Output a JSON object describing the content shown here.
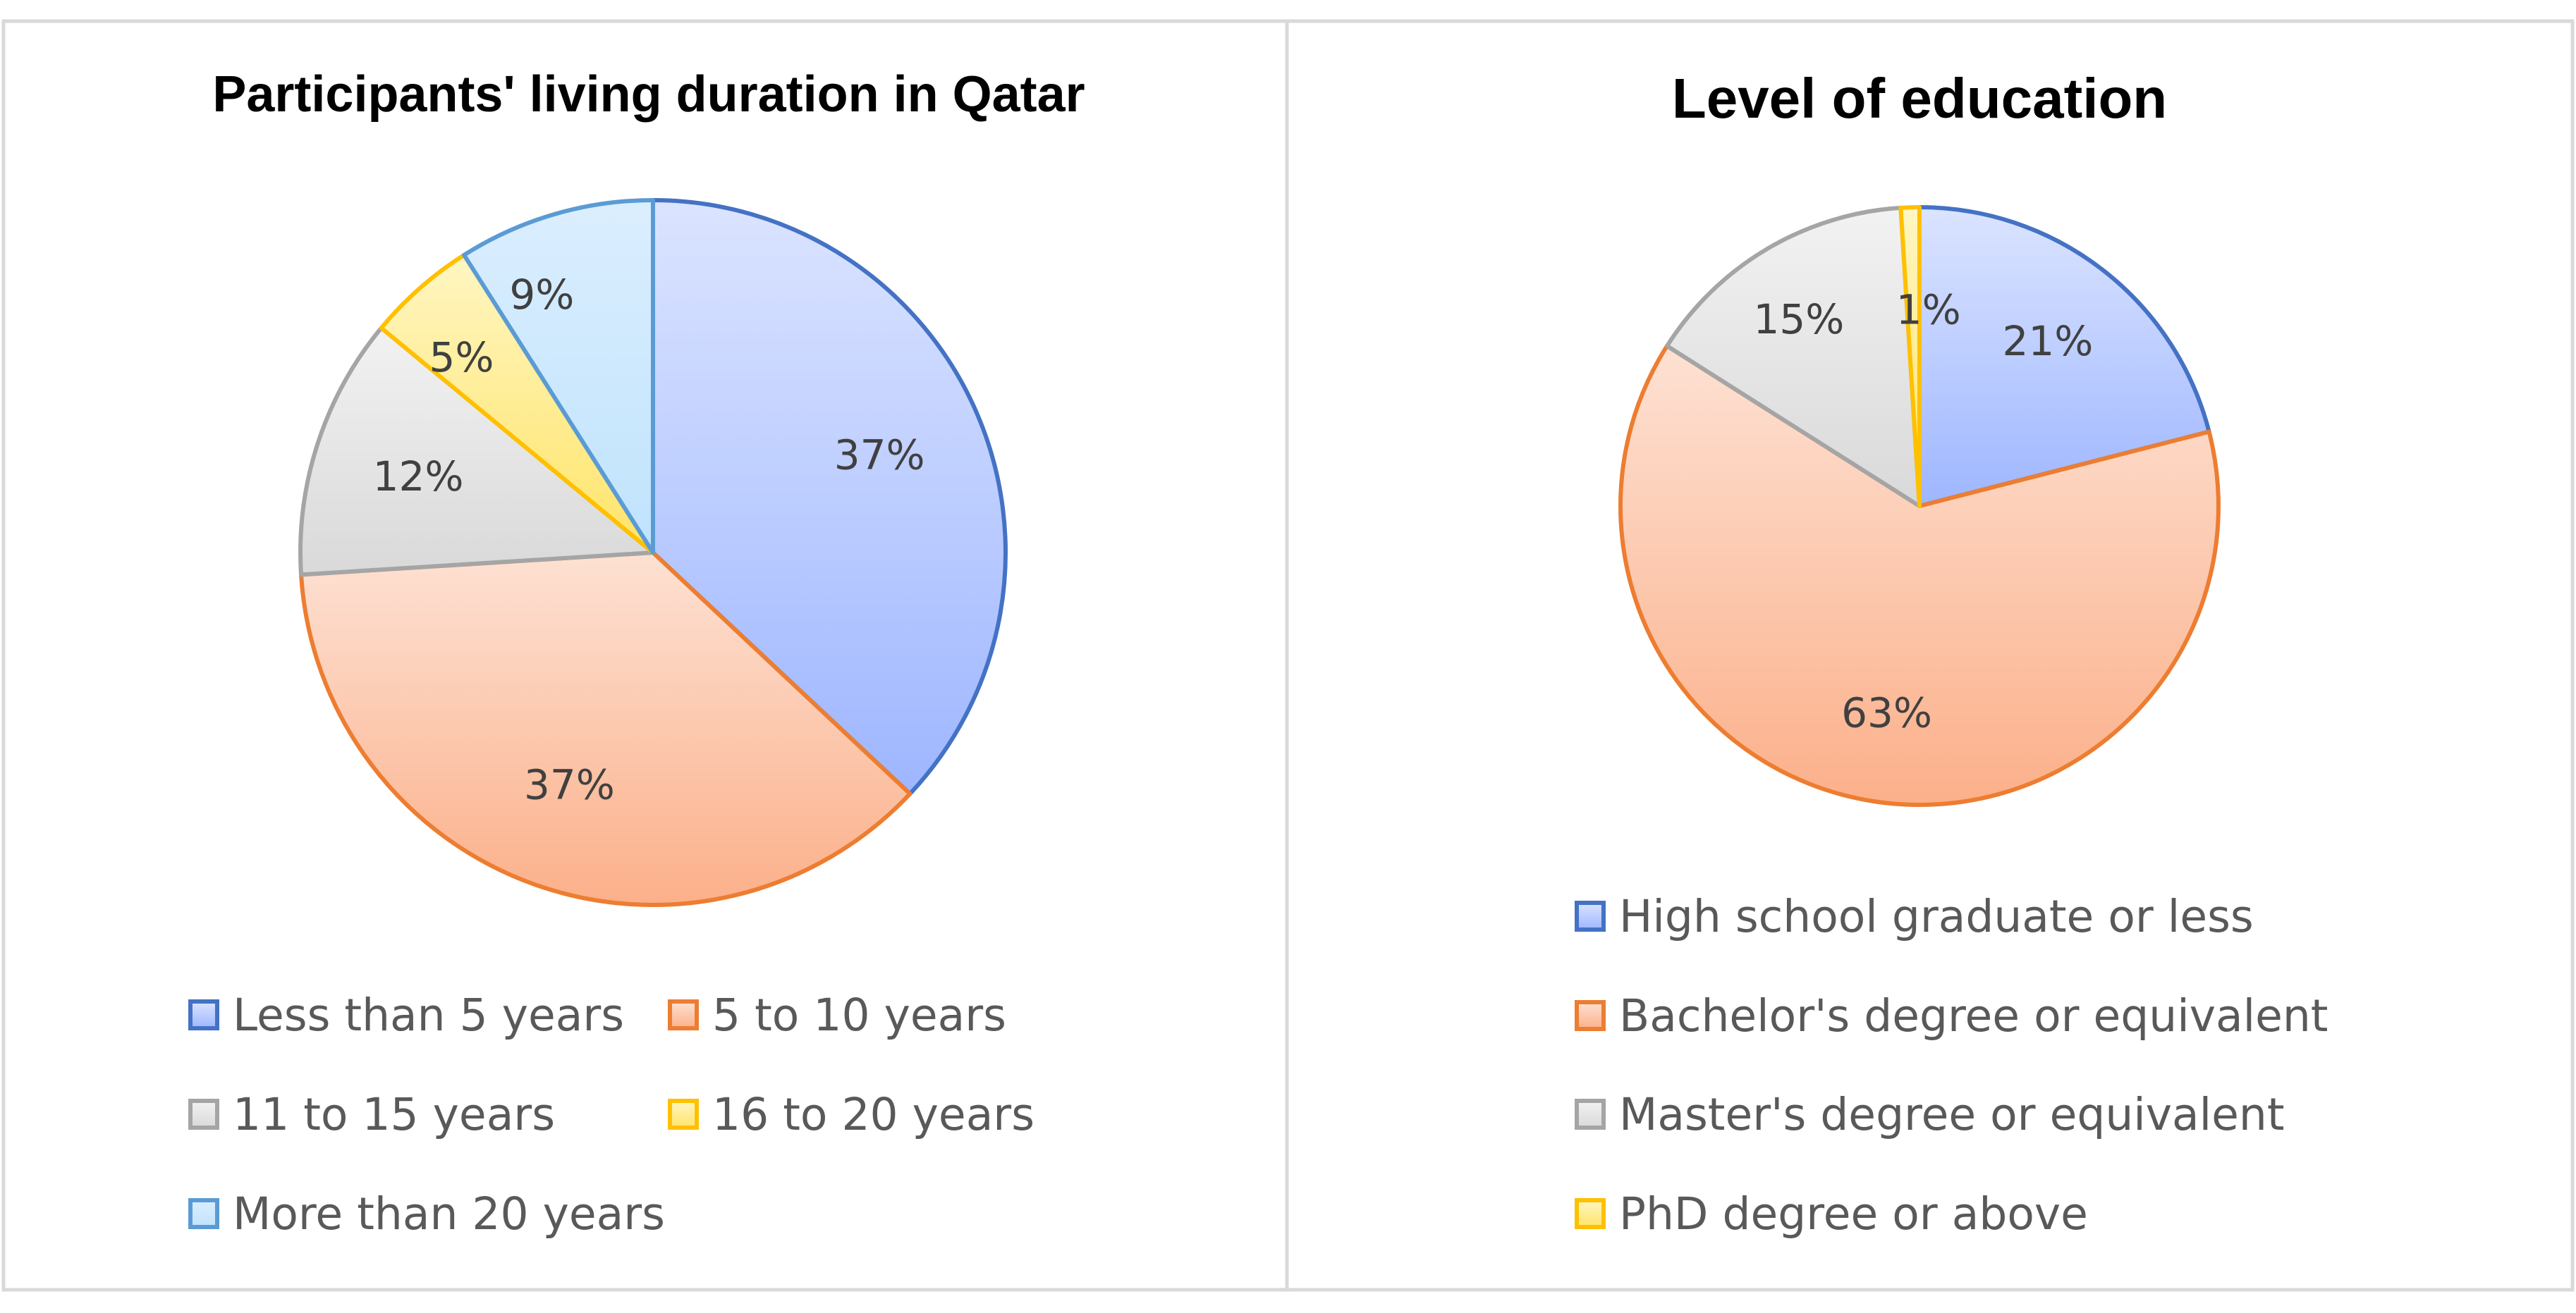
{
  "chart_data": [
    {
      "type": "pie",
      "title": "Participants' living duration in Qatar",
      "categories": [
        "Less than 5 years",
        "5 to 10 years",
        "11 to 15 years",
        "16 to 20 years",
        "More than 20 years"
      ],
      "values": [
        37,
        37,
        12,
        5,
        9
      ],
      "data_labels": [
        "37%",
        "37%",
        "12%",
        "5%",
        "9%"
      ],
      "colors": {
        "fill_light": [
          "#dbe4ff",
          "#fde1d3",
          "#f2f2f2",
          "#fff6c2",
          "#dbeefe"
        ],
        "fill_dark": [
          "#9eb6ff",
          "#fcb08a",
          "#d9d9d9",
          "#ffe469",
          "#bfe3fc"
        ],
        "stroke": [
          "#4472c4",
          "#ed7d31",
          "#a5a5a5",
          "#ffc000",
          "#5b9bd5"
        ]
      },
      "legend_position": "bottom"
    },
    {
      "type": "pie",
      "title": "Level of education",
      "categories": [
        "High school graduate or less",
        "Bachelor's degree or equivalent",
        "Master's degree or equivalent",
        "PhD degree or above"
      ],
      "values": [
        21,
        63,
        15,
        1
      ],
      "data_labels": [
        "21%",
        "63%",
        "15%",
        "1%"
      ],
      "colors": {
        "fill_light": [
          "#dbe4ff",
          "#fde1d3",
          "#f2f2f2",
          "#fff6c2"
        ],
        "fill_dark": [
          "#9eb6ff",
          "#fcb08a",
          "#d9d9d9",
          "#ffe469"
        ],
        "stroke": [
          "#4472c4",
          "#ed7d31",
          "#a5a5a5",
          "#ffc000"
        ]
      },
      "legend_position": "bottom"
    }
  ]
}
